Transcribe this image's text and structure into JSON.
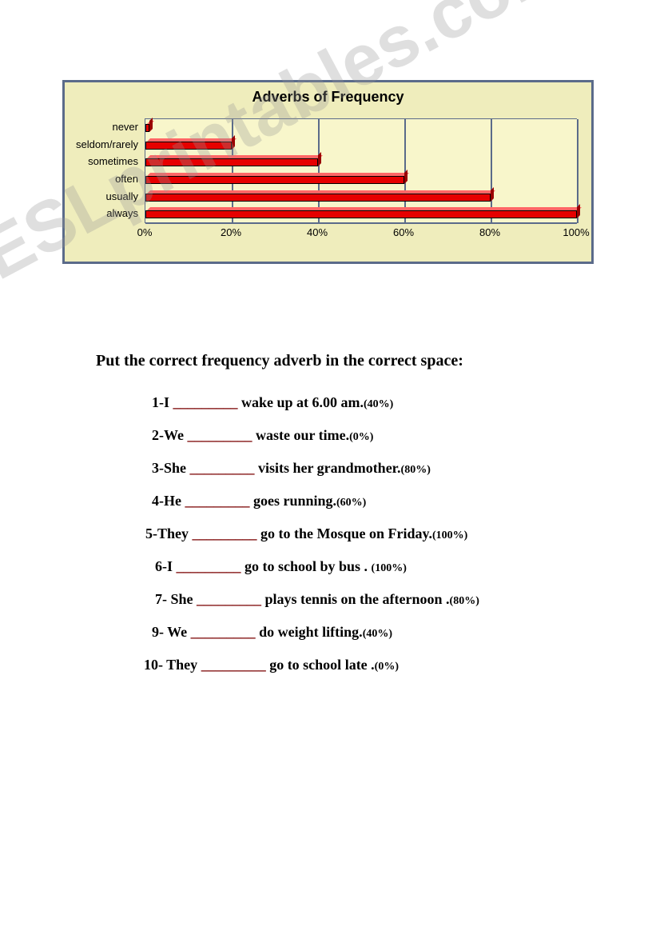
{
  "chart": {
    "type": "bar",
    "title": "Adverbs of Frequency",
    "title_fontsize": 18,
    "background_color": "#efedbc",
    "plot_background": "#f8f6cb",
    "border_color": "#5b6b8a",
    "bar_color": "#e60000",
    "bar_top_color": "#ff6666",
    "bar_side_color": "#990000",
    "grid_color": "#5b6b8a",
    "categories": [
      "never",
      "seldom/rarely",
      "sometimes",
      "often",
      "usually",
      "always"
    ],
    "values": [
      1,
      20,
      40,
      60,
      80,
      100
    ],
    "xlim": [
      0,
      100
    ],
    "xtick_step": 20,
    "xtick_labels": [
      "0%",
      "20%",
      "40%",
      "60%",
      "80%",
      "100%"
    ],
    "label_fontsize": 13
  },
  "instruction": "Put the correct frequency adverb in the correct space:",
  "blank_color": "#7a0000",
  "blank_glyph": "_________",
  "exercises": [
    {
      "num": "1",
      "pre": "-I ",
      "post": " wake up at 6.00 am.",
      "pct": "(40%)",
      "indent": 0
    },
    {
      "num": "2",
      "pre": "-We ",
      "post": " waste our time.",
      "pct": "(0%)",
      "indent": 0
    },
    {
      "num": "3",
      "pre": "-She ",
      "post": " visits her grandmother.",
      "pct": "(80%)",
      "indent": 0
    },
    {
      "num": "4",
      "pre": "-He ",
      "post": " goes running.",
      "pct": "(60%)",
      "indent": 0
    },
    {
      "num": "5",
      "pre": "-They ",
      "post": " go to the Mosque on Friday.",
      "pct": "(100%)",
      "indent": -8
    },
    {
      "num": "6",
      "pre": "-I ",
      "post": " go to school by bus . ",
      "pct": "(100%)",
      "indent": 4
    },
    {
      "num": "7",
      "pre": "- She ",
      "post": " plays tennis on the afternoon .",
      "pct": "(80%)",
      "indent": 4
    },
    {
      "num": "9",
      "pre": "- We ",
      "post": " do weight lifting.",
      "pct": "(40%)",
      "indent": 0
    },
    {
      "num": "10",
      "pre": "- They ",
      "post": " go to school late .",
      "pct": "(0%)",
      "indent": -10
    }
  ],
  "watermark": "ESLprintables.com"
}
